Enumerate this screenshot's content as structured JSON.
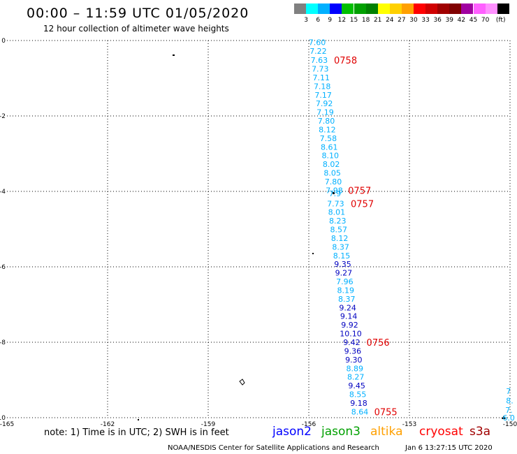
{
  "header": {
    "title": "00:00 – 11:59 UTC 01/05/2020",
    "subtitle": "12 hour collection of altimeter wave heights"
  },
  "colorbar": {
    "unit": "(ft)",
    "colors": [
      "#808080",
      "#00ffff",
      "#00b0ff",
      "#0000ff",
      "#00c000",
      "#00a000",
      "#008000",
      "#ffff00",
      "#ffd000",
      "#ffa000",
      "#ff0000",
      "#d00000",
      "#a00000",
      "#800000",
      "#a000a0",
      "#ff60ff",
      "#ff90ff",
      "#000000"
    ],
    "labels": [
      "3",
      "6",
      "9",
      "12",
      "15",
      "18",
      "21",
      "24",
      "27",
      "30",
      "33",
      "36",
      "39",
      "42",
      "45",
      "70"
    ]
  },
  "axes": {
    "x_ticks": [
      "-165",
      "-162",
      "-159",
      "-156",
      "-153",
      "-150"
    ],
    "y_ticks": [
      "0",
      "-2",
      "-4",
      "-6",
      "-8",
      "-10"
    ],
    "x_range": [
      -165,
      -150
    ],
    "y_range": [
      -10,
      0
    ],
    "grid": "dotted"
  },
  "track": {
    "values": [
      "7.60",
      "7.22",
      "7.63",
      "7.73",
      "7.11",
      "7.18",
      "7.17",
      "7.92",
      "7.19",
      "7.80",
      "8.12",
      "7.58",
      "8.61",
      "8.10",
      "8.02",
      "8.05",
      "7.80",
      "7.98",
      "7.9",
      "7.73",
      "8.01",
      "8.23",
      "8.57",
      "8.12",
      "8.37",
      "8.15",
      "9.35",
      "9.27",
      "7.96",
      "8.19",
      "8.37",
      "9.24",
      "9.14",
      "9.92",
      "10.10",
      "9.42",
      "9.36",
      "9.30",
      "8.89",
      "8.27",
      "9.45",
      "8.55",
      "9.18",
      "8.64"
    ],
    "lats": [
      -0.05,
      -0.28,
      -0.52,
      -0.75,
      -0.98,
      -1.21,
      -1.44,
      -1.67,
      -1.9,
      -2.13,
      -2.36,
      -2.59,
      -2.82,
      -3.05,
      -3.28,
      -3.51,
      -3.74,
      -3.97,
      -4.06,
      -4.32,
      -4.55,
      -4.78,
      -5.01,
      -5.24,
      -5.47,
      -5.7,
      -5.93,
      -6.16,
      -6.39,
      -6.62,
      -6.85,
      -7.08,
      -7.31,
      -7.54,
      -7.77,
      -8.0,
      -8.23,
      -8.46,
      -8.69,
      -8.92,
      -9.15,
      -9.38,
      -9.61,
      -9.84
    ],
    "lons": [
      -155.75,
      -155.72,
      -155.69,
      -155.66,
      -155.63,
      -155.6,
      -155.57,
      -155.54,
      -155.51,
      -155.48,
      -155.45,
      -155.42,
      -155.39,
      -155.36,
      -155.33,
      -155.3,
      -155.27,
      -155.24,
      -155.22,
      -155.2,
      -155.17,
      -155.14,
      -155.11,
      -155.08,
      -155.05,
      -155.02,
      -154.99,
      -154.96,
      -154.93,
      -154.9,
      -154.87,
      -154.84,
      -154.81,
      -154.78,
      -154.75,
      -154.72,
      -154.69,
      -154.66,
      -154.63,
      -154.6,
      -154.57,
      -154.54,
      -154.51,
      -154.48
    ],
    "colors": [
      "#00b0ff",
      "#00b0ff",
      "#00b0ff",
      "#00b0ff",
      "#00b0ff",
      "#00b0ff",
      "#00b0ff",
      "#00b0ff",
      "#00b0ff",
      "#00b0ff",
      "#00b0ff",
      "#00b0ff",
      "#00b0ff",
      "#00b0ff",
      "#00b0ff",
      "#00b0ff",
      "#00b0ff",
      "#00b0ff",
      "#00b0ff",
      "#00b0ff",
      "#00b0ff",
      "#00b0ff",
      "#00b0ff",
      "#00b0ff",
      "#00b0ff",
      "#00b0ff",
      "#0000c0",
      "#0000c0",
      "#00b0ff",
      "#00b0ff",
      "#00b0ff",
      "#0000c0",
      "#0000c0",
      "#0000c0",
      "#0000c0",
      "#0000c0",
      "#0000c0",
      "#0000c0",
      "#00b0ff",
      "#00b0ff",
      "#0000c0",
      "#00b0ff",
      "#0000c0",
      "#00b0ff"
    ]
  },
  "edge_track": {
    "values": [
      "7",
      "8.",
      "7.",
      "6.0"
    ],
    "lats": [
      -9.3,
      -9.55,
      -9.8,
      -10.0
    ],
    "lons": [
      -150.12,
      -150.12,
      -150.14,
      -150.22
    ]
  },
  "time_labels": [
    {
      "text": "0758",
      "lat": -0.52,
      "lon": -155.25
    },
    {
      "text": "0757",
      "lat": -3.97,
      "lon": -154.83
    },
    {
      "text": "0757",
      "lat": -4.32,
      "lon": -154.75
    },
    {
      "text": "0756",
      "lat": -8.0,
      "lon": -154.28
    },
    {
      "text": "0755",
      "lat": -9.84,
      "lon": -154.05
    }
  ],
  "notes": {
    "text": "note:  1) Time is in UTC;  2) SWH is in feet"
  },
  "missions": [
    {
      "name": "jason2",
      "color": "#0000ff"
    },
    {
      "name": "jason3",
      "color": "#00a000"
    },
    {
      "name": "altika",
      "color": "#ffa000"
    },
    {
      "name": "cryosat",
      "color": "#ff0000"
    },
    {
      "name": "s3a",
      "color": "#a00000"
    }
  ],
  "footer": {
    "center": "NOAA/NESDIS Center for Satellite Applications and Research",
    "date": "Jan  6 13:27:15 UTC 2020"
  }
}
